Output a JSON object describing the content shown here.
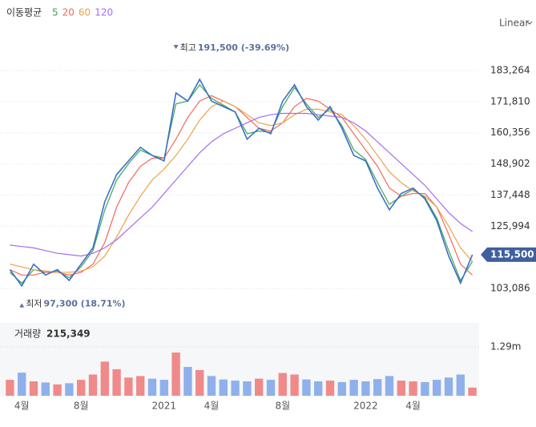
{
  "chart_data": {
    "type": "stock",
    "ma_label": "이동평균",
    "categories": [
      null,
      "4월",
      null,
      null,
      null,
      null,
      "8월",
      null,
      null,
      null,
      null,
      null,
      null,
      "2021",
      null,
      null,
      null,
      "4월",
      null,
      null,
      null,
      null,
      null,
      "8월",
      null,
      null,
      null,
      null,
      null,
      null,
      "2022",
      null,
      null,
      null,
      "4월",
      null,
      null,
      null,
      null,
      null
    ],
    "price": {
      "color": "#3b6fc4",
      "values": [
        110000,
        104000,
        112000,
        108000,
        110000,
        106000,
        112000,
        118000,
        135000,
        145000,
        150000,
        155000,
        152000,
        150000,
        175000,
        172000,
        180000,
        172000,
        170000,
        168000,
        158000,
        162000,
        160000,
        172000,
        178000,
        170000,
        165000,
        170000,
        162000,
        152000,
        150000,
        140000,
        132000,
        138000,
        140000,
        136000,
        128000,
        115000,
        105000,
        115500
      ],
      "last_label": "115,500",
      "tag_color": "#3f5f9e"
    },
    "series": [
      {
        "name": "5",
        "color": "#3aa55c",
        "values": [
          109000,
          105000,
          110000,
          109000,
          109500,
          107000,
          111000,
          117000,
          132000,
          143000,
          149000,
          154000,
          152000,
          151000,
          171000,
          172000,
          178000,
          173000,
          170500,
          168000,
          160000,
          161000,
          160500,
          170000,
          177000,
          171000,
          166000,
          169000,
          163000,
          154000,
          150500,
          142000,
          134000,
          137000,
          139500,
          136500,
          129000,
          117000,
          106000,
          113000
        ]
      },
      {
        "name": "20",
        "color": "#ef6a5a",
        "values": [
          110000,
          108000,
          108000,
          109000,
          109000,
          108000,
          109000,
          112000,
          120000,
          133000,
          142000,
          148000,
          151000,
          151000,
          158000,
          166000,
          172000,
          174000,
          172000,
          170000,
          166000,
          162000,
          161000,
          164000,
          170000,
          173000,
          172000,
          169000,
          166000,
          160000,
          154000,
          148000,
          140000,
          137000,
          138000,
          138000,
          133000,
          123000,
          112000,
          108000
        ]
      },
      {
        "name": "60",
        "color": "#f0a04b",
        "values": [
          112000,
          111000,
          110000,
          109500,
          109000,
          109000,
          109500,
          111000,
          115000,
          122000,
          130000,
          137000,
          143000,
          147000,
          152000,
          158000,
          165000,
          170000,
          172000,
          170000,
          167000,
          164000,
          163000,
          164000,
          167000,
          169000,
          169000,
          168000,
          167000,
          163000,
          158000,
          152000,
          146000,
          142000,
          139000,
          137000,
          133000,
          126000,
          118000,
          113000
        ]
      },
      {
        "name": "120",
        "color": "#a66cf0",
        "values": [
          119000,
          118500,
          118000,
          117000,
          116000,
          115500,
          115000,
          116000,
          118000,
          121000,
          125000,
          129000,
          133000,
          138000,
          143000,
          148000,
          153000,
          157000,
          160000,
          162000,
          164000,
          166000,
          167000,
          167500,
          167500,
          167500,
          167000,
          166500,
          166000,
          164000,
          161000,
          157000,
          153000,
          149000,
          145000,
          141000,
          136000,
          131000,
          127000,
          124000
        ]
      }
    ],
    "ylim": [
      92768,
      197414
    ],
    "yticks": [
      {
        "value": 103086,
        "label": "103,086"
      },
      {
        "value": 125994,
        "label": "125,994"
      },
      {
        "value": 137448,
        "label": "137,448"
      },
      {
        "value": 148902,
        "label": "148,902"
      },
      {
        "value": 160356,
        "label": "160,356"
      },
      {
        "value": 171810,
        "label": "171,810"
      },
      {
        "value": 183264,
        "label": "183,264"
      }
    ],
    "annotations": [
      {
        "label": "최고",
        "text": "191,500 (-39.69%)",
        "index": 14,
        "value": 191500
      },
      {
        "label": "최저",
        "text": "97,300 (18.71%)",
        "index": 1,
        "value": 97300
      }
    ],
    "volume": {
      "label": "거래량",
      "last_label": "215,349",
      "up_color": "#f08a8a",
      "down_color": "#8fb0ea",
      "values": [
        420000,
        610000,
        380000,
        350000,
        300000,
        330000,
        420000,
        560000,
        900000,
        700000,
        480000,
        520000,
        450000,
        420000,
        1140000,
        760000,
        680000,
        520000,
        430000,
        400000,
        380000,
        450000,
        420000,
        600000,
        560000,
        430000,
        380000,
        400000,
        360000,
        420000,
        380000,
        440000,
        520000,
        400000,
        380000,
        360000,
        420000,
        480000,
        560000,
        215349
      ],
      "ylim": [
        0,
        1880000
      ],
      "yticks": [
        {
          "value": 1290000,
          "label": "1.29m"
        }
      ]
    },
    "scale_label": "Linear"
  }
}
